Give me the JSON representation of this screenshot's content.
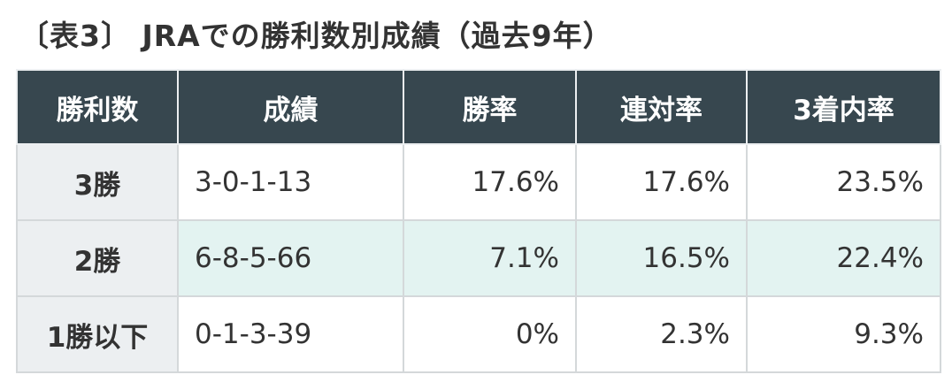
{
  "title": "〔表3〕 JRAでの勝利数別成績（過去9年）",
  "table": {
    "headers": [
      "勝利数",
      "成績",
      "勝率",
      "連対率",
      "3着内率"
    ],
    "rows": [
      [
        "3勝",
        "3-0-1-13",
        "17.6%",
        "17.6%",
        "23.5%"
      ],
      [
        "2勝",
        "6-8-5-66",
        "7.1%",
        "16.5%",
        "22.4%"
      ],
      [
        "1勝以下",
        "0-1-3-39",
        "0%",
        "2.3%",
        "9.3%"
      ]
    ]
  }
}
